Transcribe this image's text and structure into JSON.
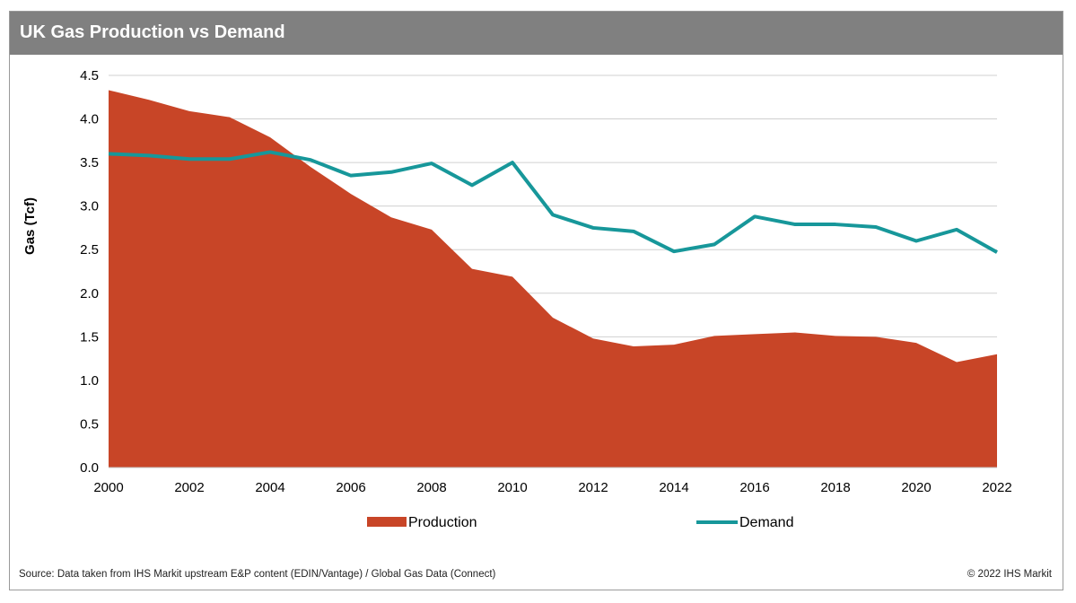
{
  "header": {
    "title": "UK Gas Production vs Demand"
  },
  "footer": {
    "source": "Source: Data taken from IHS Markit upstream E&P content (EDIN/Vantage) / Global Gas Data (Connect)",
    "copyright": "© 2022 IHS Markit"
  },
  "chart_data": {
    "type": "area",
    "title": "UK Gas Production vs Demand",
    "xlabel": "",
    "ylabel": "Gas (Tcf)",
    "x": [
      2000,
      2001,
      2002,
      2003,
      2004,
      2005,
      2006,
      2007,
      2008,
      2009,
      2010,
      2011,
      2012,
      2013,
      2014,
      2015,
      2016,
      2017,
      2018,
      2019,
      2020,
      2021,
      2022
    ],
    "xticks": [
      "2000",
      "2002",
      "2004",
      "2006",
      "2008",
      "2010",
      "2012",
      "2014",
      "2016",
      "2018",
      "2020",
      "2022"
    ],
    "yticks": [
      "0.0",
      "0.5",
      "1.0",
      "1.5",
      "2.0",
      "2.5",
      "3.0",
      "3.5",
      "4.0",
      "4.5"
    ],
    "xlim": [
      2000,
      2022
    ],
    "ylim": [
      0,
      4.5
    ],
    "grid": true,
    "legend_position": "bottom",
    "series": [
      {
        "name": "Production",
        "type": "area",
        "color": "#c84527",
        "values": [
          4.33,
          4.22,
          4.09,
          4.02,
          3.79,
          3.45,
          3.14,
          2.87,
          2.73,
          2.28,
          2.19,
          1.72,
          1.48,
          1.39,
          1.41,
          1.51,
          1.53,
          1.55,
          1.51,
          1.5,
          1.43,
          1.21,
          1.3
        ]
      },
      {
        "name": "Demand",
        "type": "line",
        "color": "#17979a",
        "values": [
          3.6,
          3.58,
          3.54,
          3.54,
          3.62,
          3.53,
          3.35,
          3.39,
          3.49,
          3.24,
          3.5,
          2.9,
          2.75,
          2.71,
          2.48,
          2.56,
          2.88,
          2.79,
          2.79,
          2.76,
          2.6,
          2.73,
          2.47
        ]
      }
    ]
  }
}
